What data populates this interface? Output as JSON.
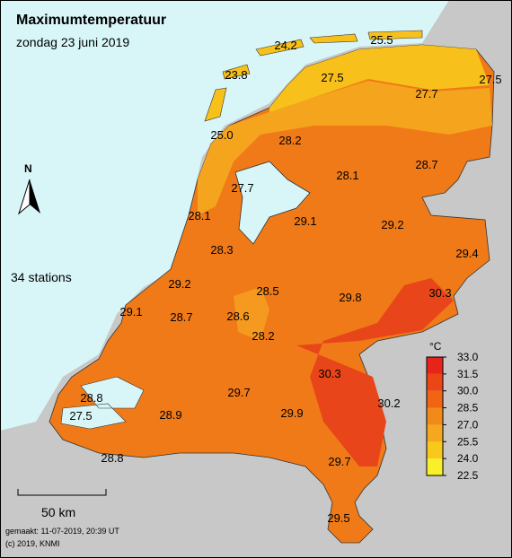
{
  "header": {
    "title": "Maximumtemperatuur",
    "subtitle": "zondag 23 juni 2019"
  },
  "stations_note": "34 stations",
  "north": "N",
  "scale": "50 km",
  "footer": [
    "gemaakt: 11-07-2019, 20:39 UT",
    "(c) 2019, KNMI"
  ],
  "stations": [
    "24.2",
    "25.5",
    "23.8",
    "27.5",
    "27.7",
    "27.5",
    "25.0",
    "28.2",
    "28.1",
    "28.7",
    "27.7",
    "28.1",
    "29.1",
    "29.2",
    "29.4",
    "28.3",
    "29.2",
    "28.5",
    "29.8",
    "30.3",
    "29.1",
    "28.7",
    "28.6",
    "28.2",
    "30.3",
    "30.2",
    "28.8",
    "29.7",
    "29.9",
    "27.5",
    "28.9",
    "28.8",
    "29.7",
    "29.5"
  ],
  "legend": {
    "title": "°C",
    "ticks": [
      "33.0",
      "31.5",
      "30.0",
      "28.5",
      "27.0",
      "25.5",
      "24.0",
      "22.5"
    ],
    "colors": [
      "#e8241a",
      "#ec4516",
      "#f06414",
      "#f28a1a",
      "#f5a81e",
      "#f8c81a",
      "#faf02a"
    ]
  }
}
